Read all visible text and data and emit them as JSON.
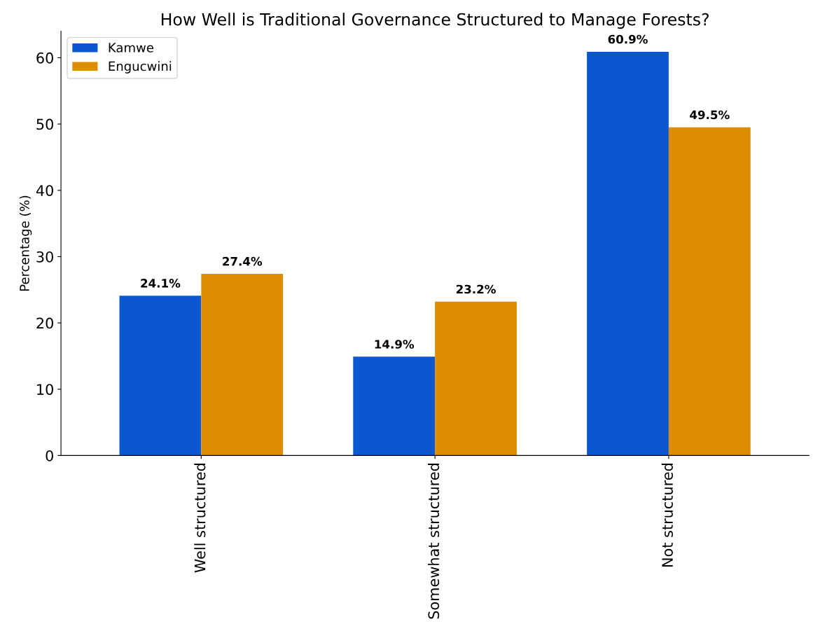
{
  "chart_data": {
    "type": "bar",
    "title": "How Well is Traditional Governance Structured to Manage Forests?",
    "ylabel": "Percentage (%)",
    "categories": [
      "Well structured",
      "Somewhat structured",
      "Not structured"
    ],
    "series": [
      {
        "name": "Kamwe",
        "color": "#0b57d0",
        "values": [
          24.1,
          14.9,
          60.9
        ],
        "value_labels": [
          "24.1%",
          "14.9%",
          "60.9%"
        ]
      },
      {
        "name": "Engucwini",
        "color": "#df8c05",
        "values": [
          27.4,
          23.2,
          49.5
        ],
        "value_labels": [
          "27.4%",
          "23.2%",
          "49.5%"
        ]
      }
    ],
    "ylim": [
      0,
      64
    ],
    "yticks": [
      0,
      10,
      20,
      30,
      40,
      50,
      60
    ],
    "grid": false,
    "legend": "top left"
  }
}
